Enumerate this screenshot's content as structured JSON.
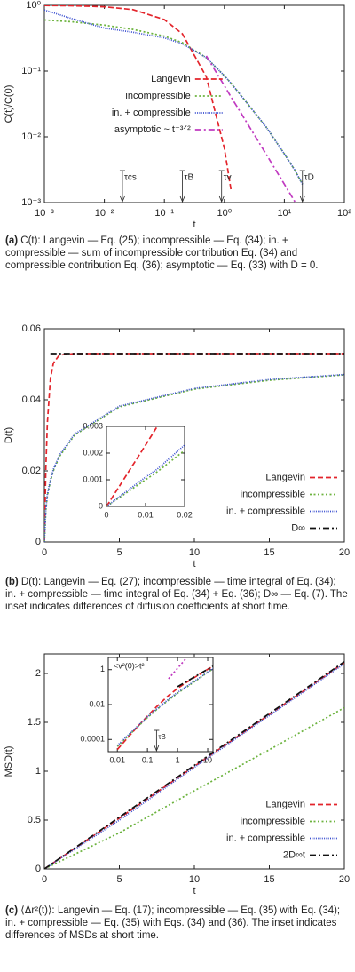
{
  "chart_data": [
    {
      "type": "line",
      "xlog": true,
      "ylog": true,
      "xlabel": "t",
      "ylabel": "C(t)/C(0)",
      "legend": "center",
      "xlim": [
        0.001,
        100
      ],
      "ylim": [
        0.001,
        1
      ],
      "xticks": [
        {
          "value": 0.001,
          "label": "10⁻³"
        },
        {
          "value": 0.01,
          "label": "10⁻²"
        },
        {
          "value": 0.1,
          "label": "10⁻¹"
        },
        {
          "value": 1,
          "label": "10⁰"
        },
        {
          "value": 10,
          "label": "10¹"
        },
        {
          "value": 100,
          "label": "10²"
        }
      ],
      "yticks": [
        {
          "value": 0.001,
          "label": "10⁻³"
        },
        {
          "value": 0.01,
          "label": "10⁻²"
        },
        {
          "value": 0.1,
          "label": "10⁻¹"
        },
        {
          "value": 1,
          "label": "10⁰"
        }
      ],
      "x": [
        0.001,
        0.003,
        0.01,
        0.03,
        0.1,
        0.2,
        0.5,
        1,
        1.3,
        2,
        5,
        10,
        15,
        20
      ],
      "series": [
        {
          "name": "Langevin",
          "color": "#e3242b",
          "dash": "dashed",
          "values": [
            0.995,
            0.985,
            0.951,
            0.861,
            0.607,
            0.368,
            0.082,
            0.0067,
            0.0015,
            null,
            null,
            null,
            null,
            null
          ]
        },
        {
          "name": "incompressible",
          "color": "#6cb33e",
          "dash": "dotted",
          "values": [
            0.6,
            0.56,
            0.5,
            0.43,
            0.34,
            0.27,
            0.16,
            0.085,
            0.065,
            0.04,
            0.014,
            0.0055,
            0.0031,
            0.0019
          ]
        },
        {
          "name": "in. + compressible",
          "color": "#3a4fd0",
          "dash": "fine",
          "values": [
            0.85,
            0.62,
            0.45,
            0.39,
            0.32,
            0.26,
            0.16,
            0.085,
            0.065,
            0.04,
            0.014,
            0.0055,
            0.0031,
            0.0019
          ]
        },
        {
          "name": "asymptotic ~ t⁻³ᐟ²",
          "color": "#c03ac0",
          "dash": "dashdot",
          "values": [
            null,
            null,
            null,
            null,
            null,
            null,
            0.17,
            0.06,
            0.04,
            0.0212,
            0.0054,
            0.0019,
            0.00103,
            null
          ]
        }
      ],
      "annotations": [
        {
          "text": "τcs",
          "x": 0.02
        },
        {
          "text": "τB",
          "x": 0.2
        },
        {
          "text": "τv",
          "x": 0.9
        },
        {
          "text": "τD",
          "x": 20
        }
      ],
      "caption_label": "(a)",
      "caption": "C(t): Langevin — Eq. (25); incompressible — Eq. (34); in. + compressible — sum of incompressible contribution Eq. (34) and compressible contribution Eq. (36); asymptotic — Eq. (33) with D = 0."
    },
    {
      "type": "line",
      "xlabel": "t",
      "ylabel": "D(t)",
      "legend": "lower right",
      "xlim": [
        0,
        20
      ],
      "ylim": [
        0,
        0.06
      ],
      "xticks": [
        0,
        5,
        10,
        15,
        20
      ],
      "yticks": [
        0,
        0.02,
        0.04,
        0.06
      ],
      "x": [
        0,
        0.1,
        0.2,
        0.4,
        0.6,
        1,
        2,
        5,
        10,
        15,
        20
      ],
      "series": [
        {
          "name": "Langevin",
          "color": "#e3242b",
          "dash": "dashed",
          "values": [
            0,
            0.0209,
            0.0335,
            0.0458,
            0.0503,
            0.0526,
            0.053,
            0.053,
            0.053,
            0.053,
            0.053
          ]
        },
        {
          "name": "incompressible",
          "color": "#6cb33e",
          "dash": "dotted",
          "values": [
            0,
            0.009,
            0.013,
            0.017,
            0.02,
            0.024,
            0.03,
            0.038,
            0.043,
            0.0455,
            0.047
          ]
        },
        {
          "name": "in. + compressible",
          "color": "#3a4fd0",
          "dash": "fine",
          "values": [
            0,
            0.0093,
            0.0134,
            0.0174,
            0.0204,
            0.0244,
            0.0303,
            0.0382,
            0.0432,
            0.0457,
            0.0471
          ]
        },
        {
          "name": "D∞",
          "color": "#111111",
          "dash": "dashdot",
          "values": [
            null,
            null,
            null,
            0.053,
            0.053,
            0.053,
            0.053,
            0.053,
            0.053,
            0.053,
            0.053
          ]
        }
      ],
      "inset": {
        "type": "line",
        "xlim": [
          0,
          0.02
        ],
        "ylim": [
          0,
          0.003
        ],
        "xticks": [
          0,
          0.01,
          0.02
        ],
        "yticks": [
          0,
          0.001,
          0.002,
          0.003
        ],
        "x": [
          0,
          0.005,
          0.01,
          0.013,
          0.02
        ],
        "series": [
          {
            "color": "#e3242b",
            "dash": "dashed",
            "values": [
              0,
              0.00115,
              0.0023,
              0.003,
              null
            ]
          },
          {
            "color": "#6cb33e",
            "dash": "dotted",
            "values": [
              0,
              0.0005,
              0.001,
              0.0013,
              0.0021
            ]
          },
          {
            "color": "#3a4fd0",
            "dash": "fine",
            "values": [
              0,
              0.00055,
              0.0011,
              0.0014,
              0.0023
            ]
          }
        ]
      },
      "caption_label": "(b)",
      "caption": "D(t): Langevin — Eq. (27); incompressible — time integral of Eq. (34); in. + compressible — time integral of Eq. (34) + Eq. (36); D∞ — Eq. (7). The inset indicates differences of diffusion coefficients at short time."
    },
    {
      "type": "line",
      "xlabel": "t",
      "ylabel": "MSD(t)",
      "legend": "lower right",
      "xlim": [
        0,
        20
      ],
      "ylim": [
        0,
        2.2
      ],
      "xticks": [
        0,
        5,
        10,
        15,
        20
      ],
      "yticks": [
        0,
        0.5,
        1,
        1.5,
        2
      ],
      "x": [
        0,
        5,
        10,
        15,
        20
      ],
      "series": [
        {
          "name": "Langevin",
          "color": "#e3242b",
          "dash": "dashed",
          "values": [
            0,
            0.52,
            1.05,
            1.58,
            2.11
          ]
        },
        {
          "name": "incompressible",
          "color": "#6cb33e",
          "dash": "dotted",
          "values": [
            0,
            0.37,
            0.8,
            1.22,
            1.65
          ]
        },
        {
          "name": "in. + compressible",
          "color": "#3a4fd0",
          "dash": "fine",
          "values": [
            0,
            0.5,
            1.04,
            1.57,
            2.1
          ]
        },
        {
          "name": "2D∞t",
          "color": "#111111",
          "dash": "dashdot",
          "values": [
            0,
            0.53,
            1.06,
            1.59,
            2.12
          ]
        }
      ],
      "inset": {
        "type": "line",
        "xlog": true,
        "ylog": true,
        "xlim": [
          0.005,
          15
        ],
        "ylim": [
          2e-05,
          5
        ],
        "xticks": [
          0.01,
          0.1,
          1,
          10
        ],
        "yticks": [
          0.0001,
          0.01,
          1
        ],
        "x": [
          0.005,
          0.01,
          0.03,
          0.1,
          0.2,
          0.5,
          1,
          2,
          5,
          10,
          15
        ],
        "series": [
          {
            "color": "#e3242b",
            "dash": "dashed",
            "values": [
              null,
              2.65e-05,
              0.00023,
              0.0022,
              0.0075,
              0.033,
              0.085,
              0.19,
              0.5,
              1.04,
              1.57
            ]
          },
          {
            "color": "#6cb33e",
            "dash": "dotted",
            "values": [
              null,
              4e-05,
              0.00025,
              0.0018,
              0.005,
              0.018,
              0.045,
              0.1,
              0.3,
              0.7,
              1.1
            ]
          },
          {
            "color": "#3a4fd0",
            "dash": "fine",
            "values": [
              null,
              4.5e-05,
              0.00028,
              0.002,
              0.0055,
              0.02,
              0.05,
              0.11,
              0.32,
              0.74,
              1.15
            ]
          },
          {
            "color": "#111111",
            "dash": "dashdot",
            "values": [
              null,
              null,
              null,
              null,
              null,
              null,
              0.106,
              0.212,
              0.53,
              1.06,
              1.59
            ]
          },
          {
            "color": "#c03ac0",
            "dash": "dotted",
            "values": [
              null,
              null,
              null,
              null,
              null,
              0.3,
              1.2,
              4.8,
              null,
              null,
              null
            ]
          }
        ],
        "annotations": [
          {
            "text": "<v²(0)>t²"
          },
          {
            "text": "τB",
            "x": 0.2
          }
        ]
      },
      "caption_label": "(c)",
      "caption": "⟨Δr²(t)⟩: Langevin — Eq. (17); incompressible — Eq. (35) with Eq. (34); in. + compressible — Eq. (35) with Eqs. (34) and (36). The inset indicates differences of MSDs at short time."
    }
  ]
}
